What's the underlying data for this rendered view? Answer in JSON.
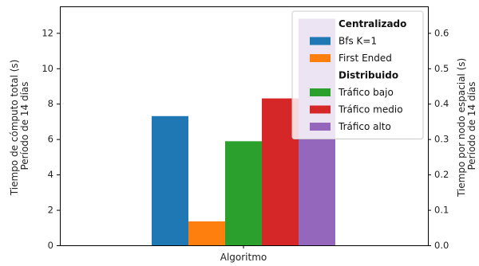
{
  "chart_data": {
    "type": "bar",
    "xlabel": "Algoritmo",
    "ylabel_left_line1": "Tiempo de cómputo total (s)",
    "ylabel_left_line2": "Período de 14 días",
    "ylabel_right_line1": "Tiempo por nodo espacial (s)",
    "ylabel_right_line2": "Período de 14 días",
    "ylim_left": [
      0,
      13.5
    ],
    "ylim_right": [
      0,
      0.675
    ],
    "yticks_left": [
      0,
      2,
      4,
      6,
      8,
      10,
      12
    ],
    "yticks_right": [
      "0.0",
      "0.1",
      "0.2",
      "0.3",
      "0.4",
      "0.5",
      "0.6"
    ],
    "series": [
      {
        "name": "Bfs K=1",
        "value": 7.3,
        "axis": "left",
        "group": "Centralizado",
        "color": "#1f77b4"
      },
      {
        "name": "First Ended",
        "value": 1.35,
        "axis": "left",
        "group": "Centralizado",
        "color": "#ff7f0e"
      },
      {
        "name": "Tráfico bajo",
        "value": 0.294,
        "axis": "right",
        "group": "Distribuido",
        "color": "#2ca02c"
      },
      {
        "name": "Tráfico medio",
        "value": 0.415,
        "axis": "right",
        "group": "Distribuido",
        "color": "#d62728"
      },
      {
        "name": "Tráfico alto",
        "value": 0.64,
        "axis": "right",
        "group": "Distribuido",
        "color": "#9467bd"
      }
    ],
    "legend": {
      "placement": "top-right",
      "entries": [
        {
          "kind": "header",
          "label": "Centralizado"
        },
        {
          "kind": "item",
          "label": "Bfs K=1",
          "color": "#1f77b4"
        },
        {
          "kind": "item",
          "label": "First Ended",
          "color": "#ff7f0e"
        },
        {
          "kind": "header",
          "label": "Distribuido"
        },
        {
          "kind": "item",
          "label": "Tráfico bajo",
          "color": "#2ca02c"
        },
        {
          "kind": "item",
          "label": "Tráfico medio",
          "color": "#d62728"
        },
        {
          "kind": "item",
          "label": "Tráfico alto",
          "color": "#9467bd"
        }
      ]
    }
  }
}
